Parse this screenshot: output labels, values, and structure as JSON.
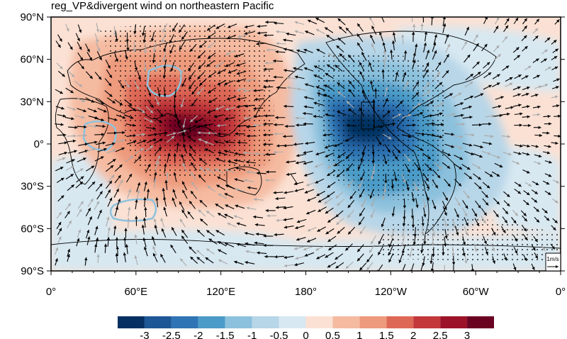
{
  "title": "reg_VP&divergent wind on northeastern Pacific",
  "lat_ticks": [
    "90°N",
    "60°N",
    "30°N",
    "0°",
    "30°S",
    "60°S",
    "90°S"
  ],
  "lon_ticks": [
    "0°",
    "60°E",
    "120°E",
    "180°",
    "120°W",
    "60°W",
    "0°"
  ],
  "colorbar": {
    "labels": [
      "-3",
      "-2.5",
      "-2",
      "-1.5",
      "-1",
      "-0.5",
      "0",
      "0.5",
      "1",
      "1.5",
      "2",
      "2.5",
      "3"
    ],
    "colors": [
      "#053061",
      "#1d5796",
      "#2f74b4",
      "#4b9bc8",
      "#8cc1dd",
      "#b7d6e8",
      "#d7e8f1",
      "#fbe1d4",
      "#f5bba1",
      "#ee9a7c",
      "#de6856",
      "#c2383b",
      "#9c1329",
      "#6a0222"
    ]
  },
  "reference_vector": {
    "label": "1m/s"
  },
  "contour_color": "#8fc3de"
}
